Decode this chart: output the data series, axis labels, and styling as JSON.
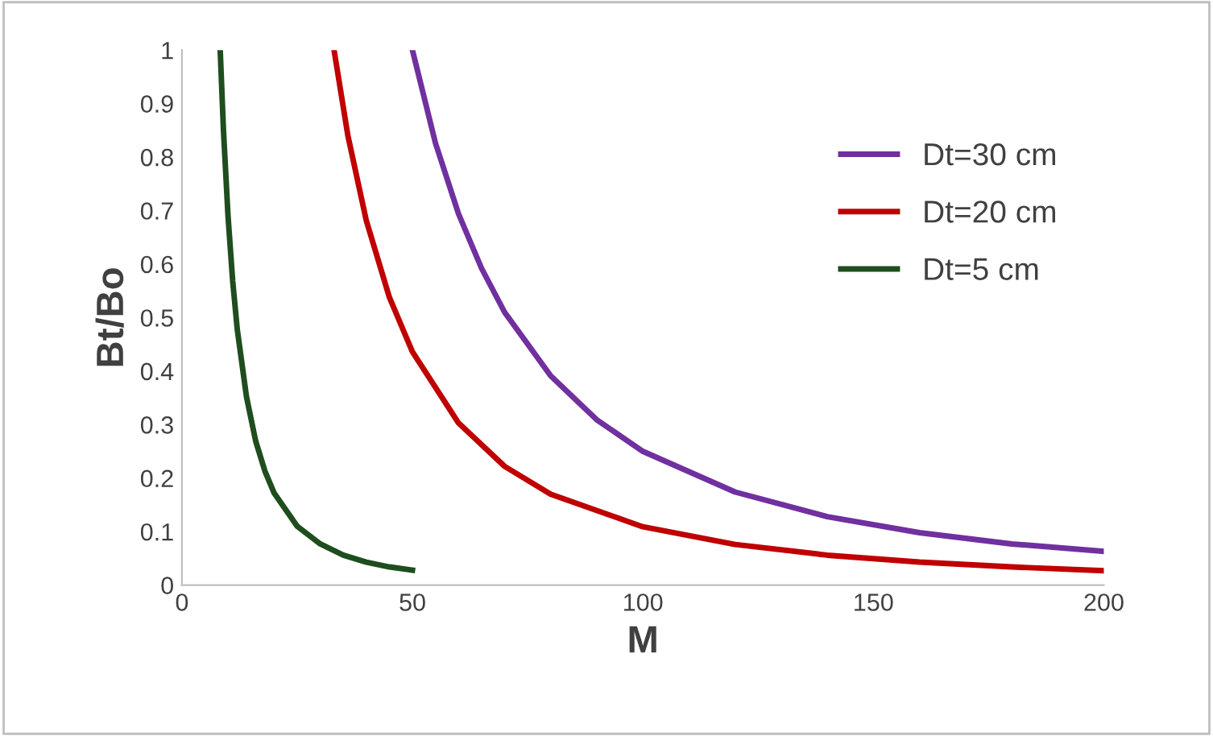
{
  "chart_data": {
    "type": "line",
    "xlabel": "M",
    "ylabel": "Bt/Bo",
    "xlim": [
      0,
      200
    ],
    "ylim": [
      0,
      1
    ],
    "xticks": [
      0,
      50,
      100,
      150,
      200
    ],
    "yticks": [
      0,
      0.1,
      0.2,
      0.3,
      0.4,
      0.5,
      0.6,
      0.7,
      0.8,
      0.9,
      1
    ],
    "grid": false,
    "legend": "top right",
    "marker": "none",
    "line_style": "solid",
    "series": [
      {
        "name": "Dt=30 cm",
        "color": "#7030a0",
        "x": [
          50,
          55,
          60,
          65,
          70,
          80,
          90,
          100,
          120,
          140,
          160,
          180,
          200
        ],
        "values": [
          1,
          0.826,
          0.694,
          0.592,
          0.51,
          0.391,
          0.309,
          0.25,
          0.174,
          0.128,
          0.098,
          0.077,
          0.063
        ]
      },
      {
        "name": "Dt=20 cm",
        "color": "#c00000",
        "x": [
          33,
          36,
          40,
          45,
          50,
          60,
          70,
          80,
          100,
          120,
          140,
          160,
          180,
          200
        ],
        "values": [
          1,
          0.84,
          0.681,
          0.538,
          0.436,
          0.303,
          0.222,
          0.17,
          0.109,
          0.076,
          0.056,
          0.043,
          0.034,
          0.027
        ]
      },
      {
        "name": "Dt=5 cm",
        "color": "#1e4d1e",
        "x": [
          8.3,
          9,
          10,
          11,
          12,
          14,
          16,
          18,
          20,
          25,
          30,
          35,
          40,
          45,
          50
        ],
        "values": [
          1,
          0.851,
          0.689,
          0.569,
          0.478,
          0.352,
          0.269,
          0.213,
          0.172,
          0.11,
          0.077,
          0.056,
          0.043,
          0.034,
          0.028
        ]
      }
    ]
  }
}
